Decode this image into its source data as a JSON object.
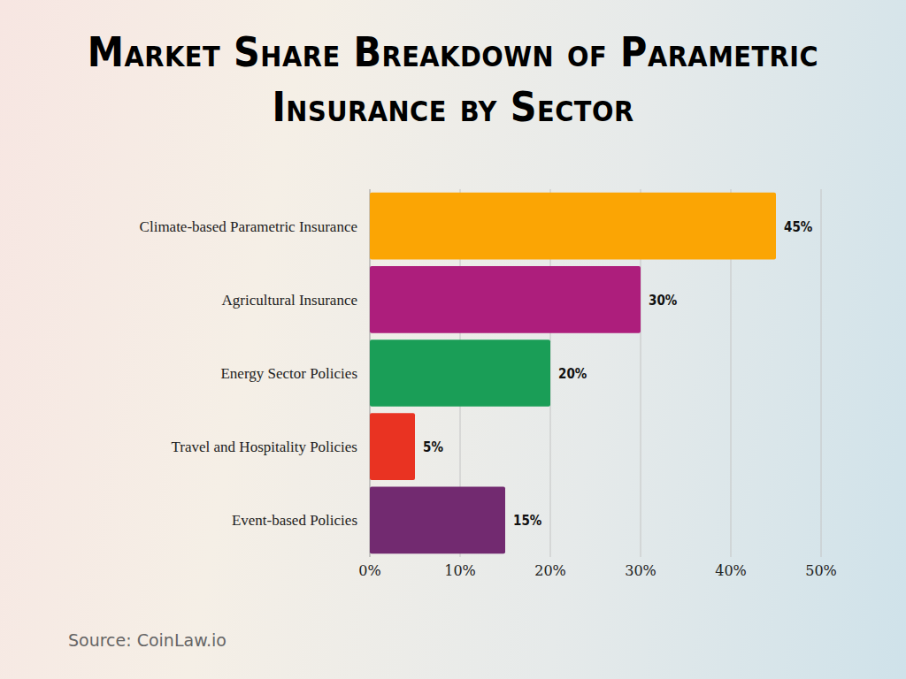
{
  "chart_data": {
    "type": "bar",
    "title": "Market Share Breakdown of Parametric Insurance by Sector",
    "source": "Source: CoinLaw.io",
    "orientation": "horizontal",
    "categories": [
      "Climate-based Parametric Insurance",
      "Agricultural Insurance",
      "Energy Sector Policies",
      "Travel and Hospitality Policies",
      "Event-based Policies"
    ],
    "values": [
      45,
      30,
      20,
      5,
      15
    ],
    "value_labels": [
      "45%",
      "30%",
      "20%",
      "5%",
      "15%"
    ],
    "colors": [
      "#fba504",
      "#ad1e7c",
      "#1a9e57",
      "#e93322",
      "#722a70"
    ],
    "xlim": [
      0,
      50
    ],
    "xticks": [
      {
        "value": 0,
        "label": "0%"
      },
      {
        "value": 10,
        "label": "10%"
      },
      {
        "value": 20,
        "label": "20%"
      },
      {
        "value": 30,
        "label": "30%"
      },
      {
        "value": 40,
        "label": "40%"
      },
      {
        "value": 50,
        "label": "50%"
      }
    ],
    "grid": true,
    "data_labels": true
  }
}
